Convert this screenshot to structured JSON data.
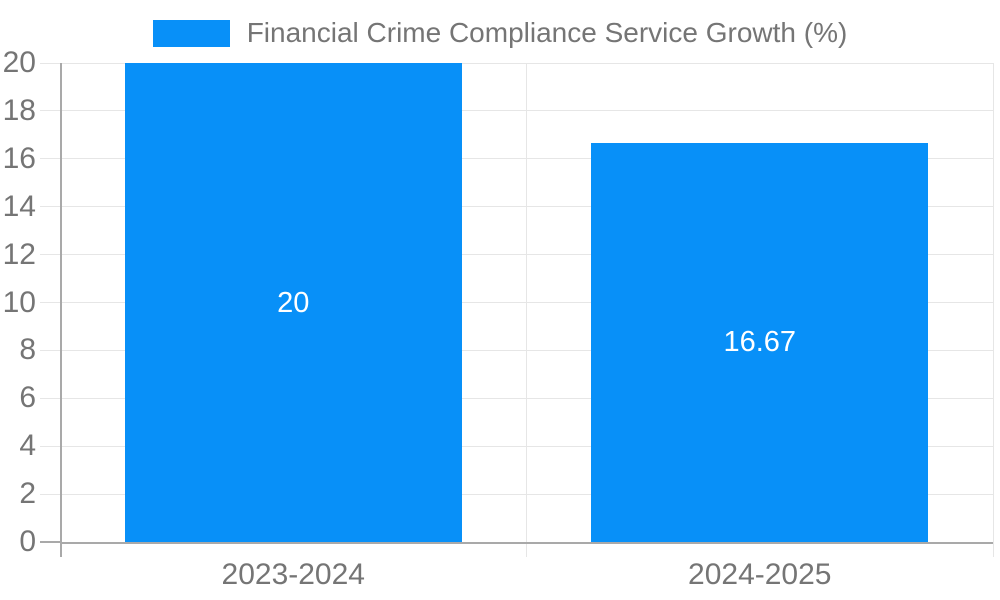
{
  "chart_data": {
    "type": "bar",
    "title": "Financial Crime Compliance Service Growth (%)",
    "categories": [
      "2023-2024",
      "2024-2025"
    ],
    "values": [
      20,
      16.67
    ],
    "value_labels": [
      "20",
      "16.67"
    ],
    "ytick_labels": [
      "0",
      "2",
      "4",
      "6",
      "8",
      "10",
      "12",
      "14",
      "16",
      "18",
      "20"
    ],
    "ytick_values": [
      0,
      2,
      4,
      6,
      8,
      10,
      12,
      14,
      16,
      18,
      20
    ],
    "ylim": [
      0,
      20
    ],
    "xlabel": "",
    "ylabel": "",
    "grid": true,
    "legend_position": "top",
    "colors": {
      "bar": "#0890f8",
      "grid": "#e6e6e6",
      "axis": "#a9a9a9",
      "tick_text": "#757575",
      "bar_label_text": "#ffffff",
      "background": "#ffffff"
    }
  }
}
